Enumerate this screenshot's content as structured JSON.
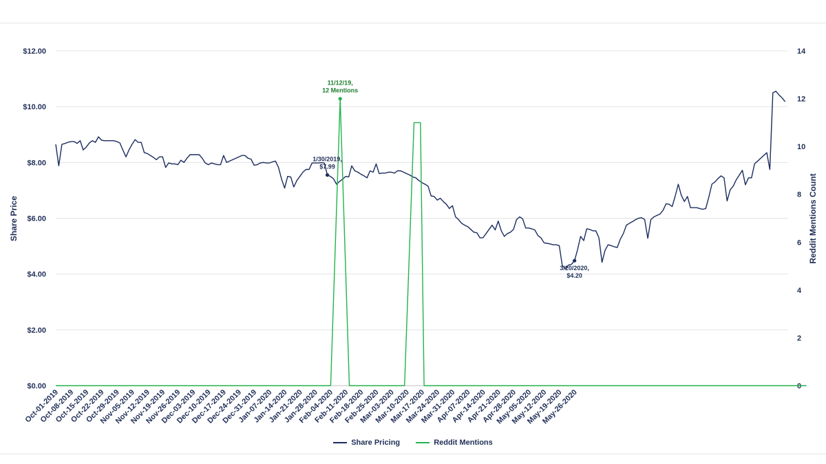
{
  "colors": {
    "share": "#1a2b5e",
    "reddit": "#22b24c",
    "grid": "#e3e3e3",
    "text": "#1f2f57",
    "annotation_reddit": "#1e7d2e"
  },
  "chart_data": {
    "type": "line",
    "title": "",
    "ylabel": "Share Price",
    "y2label": "Reddit Mentions Count",
    "xlabel": "",
    "ylim": [
      0,
      12
    ],
    "y2lim": [
      0,
      14
    ],
    "y_ticks": [
      "$0.00",
      "$2.00",
      "$4.00",
      "$6.00",
      "$8.00",
      "$10.00",
      "$12.00"
    ],
    "y2_ticks": [
      "0",
      "2",
      "4",
      "6",
      "8",
      "10",
      "12",
      "14"
    ],
    "x_ticks": [
      "Oct-01-2019",
      "Oct-08-2019",
      "Oct-15-2019",
      "Oct-22-2019",
      "Oct-29-2019",
      "Nov-05-2019",
      "Nov-12-2019",
      "Nov-19-2019",
      "Nov-26-2019",
      "Dec-03-2019",
      "Dec-10-2019",
      "Dec-17-2019",
      "Dec-24-2019",
      "Dec-31-2019",
      "Jan-07-2020",
      "Jan-14-2020",
      "Jan-21-2020",
      "Jan-28-2020",
      "Feb-04-2020",
      "Feb-11-2020",
      "Feb-18-2020",
      "Feb-25-2020",
      "Mar-03-2020",
      "Mar-10-2020",
      "Mar-17-2020",
      "Mar-24-2020",
      "Mar-31-2020",
      "Apr-07-2020",
      "Apr-14-2020",
      "Apr-21-2020",
      "Apr-28-2020",
      "May-05-2020",
      "May-12-2020",
      "May-19-2020",
      "May-26-2020"
    ],
    "legend_position": "bottom",
    "grid": true,
    "series": [
      {
        "name": "Share Pricing",
        "axis": "left",
        "values": [
          8.65,
          7.88,
          8.65,
          8.68,
          8.72,
          8.75,
          8.75,
          8.68,
          8.78,
          8.45,
          8.55,
          8.7,
          8.78,
          8.72,
          8.92,
          8.8,
          8.78,
          8.78,
          8.78,
          8.78,
          8.75,
          8.7,
          8.45,
          8.2,
          8.45,
          8.65,
          8.82,
          8.72,
          8.72,
          8.35,
          8.32,
          8.25,
          8.18,
          8.1,
          8.2,
          8.2,
          7.82,
          7.98,
          7.95,
          7.95,
          7.92,
          8.08,
          8.0,
          8.15,
          8.28,
          8.28,
          8.28,
          8.28,
          8.15,
          7.98,
          7.92,
          7.98,
          7.95,
          7.92,
          7.92,
          8.25,
          8.0,
          8.05,
          8.1,
          8.15,
          8.2,
          8.25,
          8.25,
          8.15,
          8.12,
          7.9,
          7.92,
          7.98,
          8.0,
          7.98,
          7.98,
          8.02,
          8.05,
          7.82,
          7.4,
          7.08,
          7.5,
          7.48,
          7.12,
          7.35,
          7.5,
          7.65,
          7.75,
          7.75,
          7.98,
          7.98,
          7.98,
          7.99,
          7.98,
          7.55,
          7.5,
          7.42,
          7.22,
          7.32,
          7.4,
          7.5,
          7.48,
          7.88,
          7.7,
          7.65,
          7.58,
          7.52,
          7.45,
          7.7,
          7.65,
          7.95,
          7.6,
          7.62,
          7.62,
          7.65,
          7.65,
          7.62,
          7.7,
          7.7,
          7.65,
          7.6,
          7.55,
          7.48,
          7.45,
          7.35,
          7.28,
          7.22,
          7.15,
          6.8,
          6.78,
          6.65,
          6.72,
          6.6,
          6.5,
          6.35,
          6.45,
          6.05,
          5.95,
          5.82,
          5.75,
          5.7,
          5.6,
          5.5,
          5.48,
          5.3,
          5.3,
          5.45,
          5.6,
          5.75,
          5.58,
          5.9,
          5.55,
          5.35,
          5.45,
          5.5,
          5.6,
          5.95,
          6.05,
          5.98,
          5.65,
          5.65,
          5.62,
          5.58,
          5.38,
          5.3,
          5.12,
          5.1,
          5.08,
          5.05,
          5.05,
          5.02,
          4.3,
          4.2,
          4.32,
          4.35,
          4.48,
          4.88,
          5.35,
          5.2,
          5.62,
          5.6,
          5.55,
          5.55,
          5.3,
          4.42,
          4.85,
          5.05,
          5.02,
          4.98,
          4.95,
          5.25,
          5.45,
          5.75,
          5.82,
          5.88,
          5.95,
          6.0,
          6.02,
          5.95,
          5.28,
          5.95,
          6.05,
          6.1,
          6.15,
          6.28,
          6.52,
          6.5,
          6.42,
          6.8,
          7.22,
          6.82,
          6.6,
          6.78,
          6.38,
          6.38,
          6.38,
          6.35,
          6.32,
          6.35,
          6.75,
          7.22,
          7.3,
          7.42,
          7.52,
          7.45,
          6.62,
          7.02,
          7.15,
          7.38,
          7.55,
          7.72,
          7.2,
          7.45,
          7.45,
          7.95,
          8.05,
          8.15,
          8.25,
          8.35,
          7.75,
          10.5,
          10.55,
          10.42,
          10.32,
          10.18
        ]
      },
      {
        "name": "Reddit Mentions",
        "axis": "right",
        "points": [
          [
            0,
            0
          ],
          [
            90.1,
            0
          ],
          [
            93.2,
            12
          ],
          [
            96.2,
            0
          ],
          [
            114.3,
            0
          ],
          [
            117.4,
            11
          ],
          [
            119.5,
            11
          ],
          [
            120.7,
            0
          ],
          [
            246,
            0
          ]
        ]
      }
    ],
    "annotations": [
      {
        "series": "Share Pricing",
        "index": 89,
        "lines": [
          "1/30/2019,",
          "$7.99"
        ],
        "label_pos": "above"
      },
      {
        "series": "Reddit Mentions",
        "x": 93.2,
        "y": 12,
        "lines": [
          "11/12/19,",
          "12 Mentions"
        ],
        "label_pos": "above"
      },
      {
        "series": "Share Pricing",
        "index": 170,
        "lines": [
          "3/20/2020,",
          "$4.20"
        ],
        "label_pos": "below"
      }
    ]
  }
}
